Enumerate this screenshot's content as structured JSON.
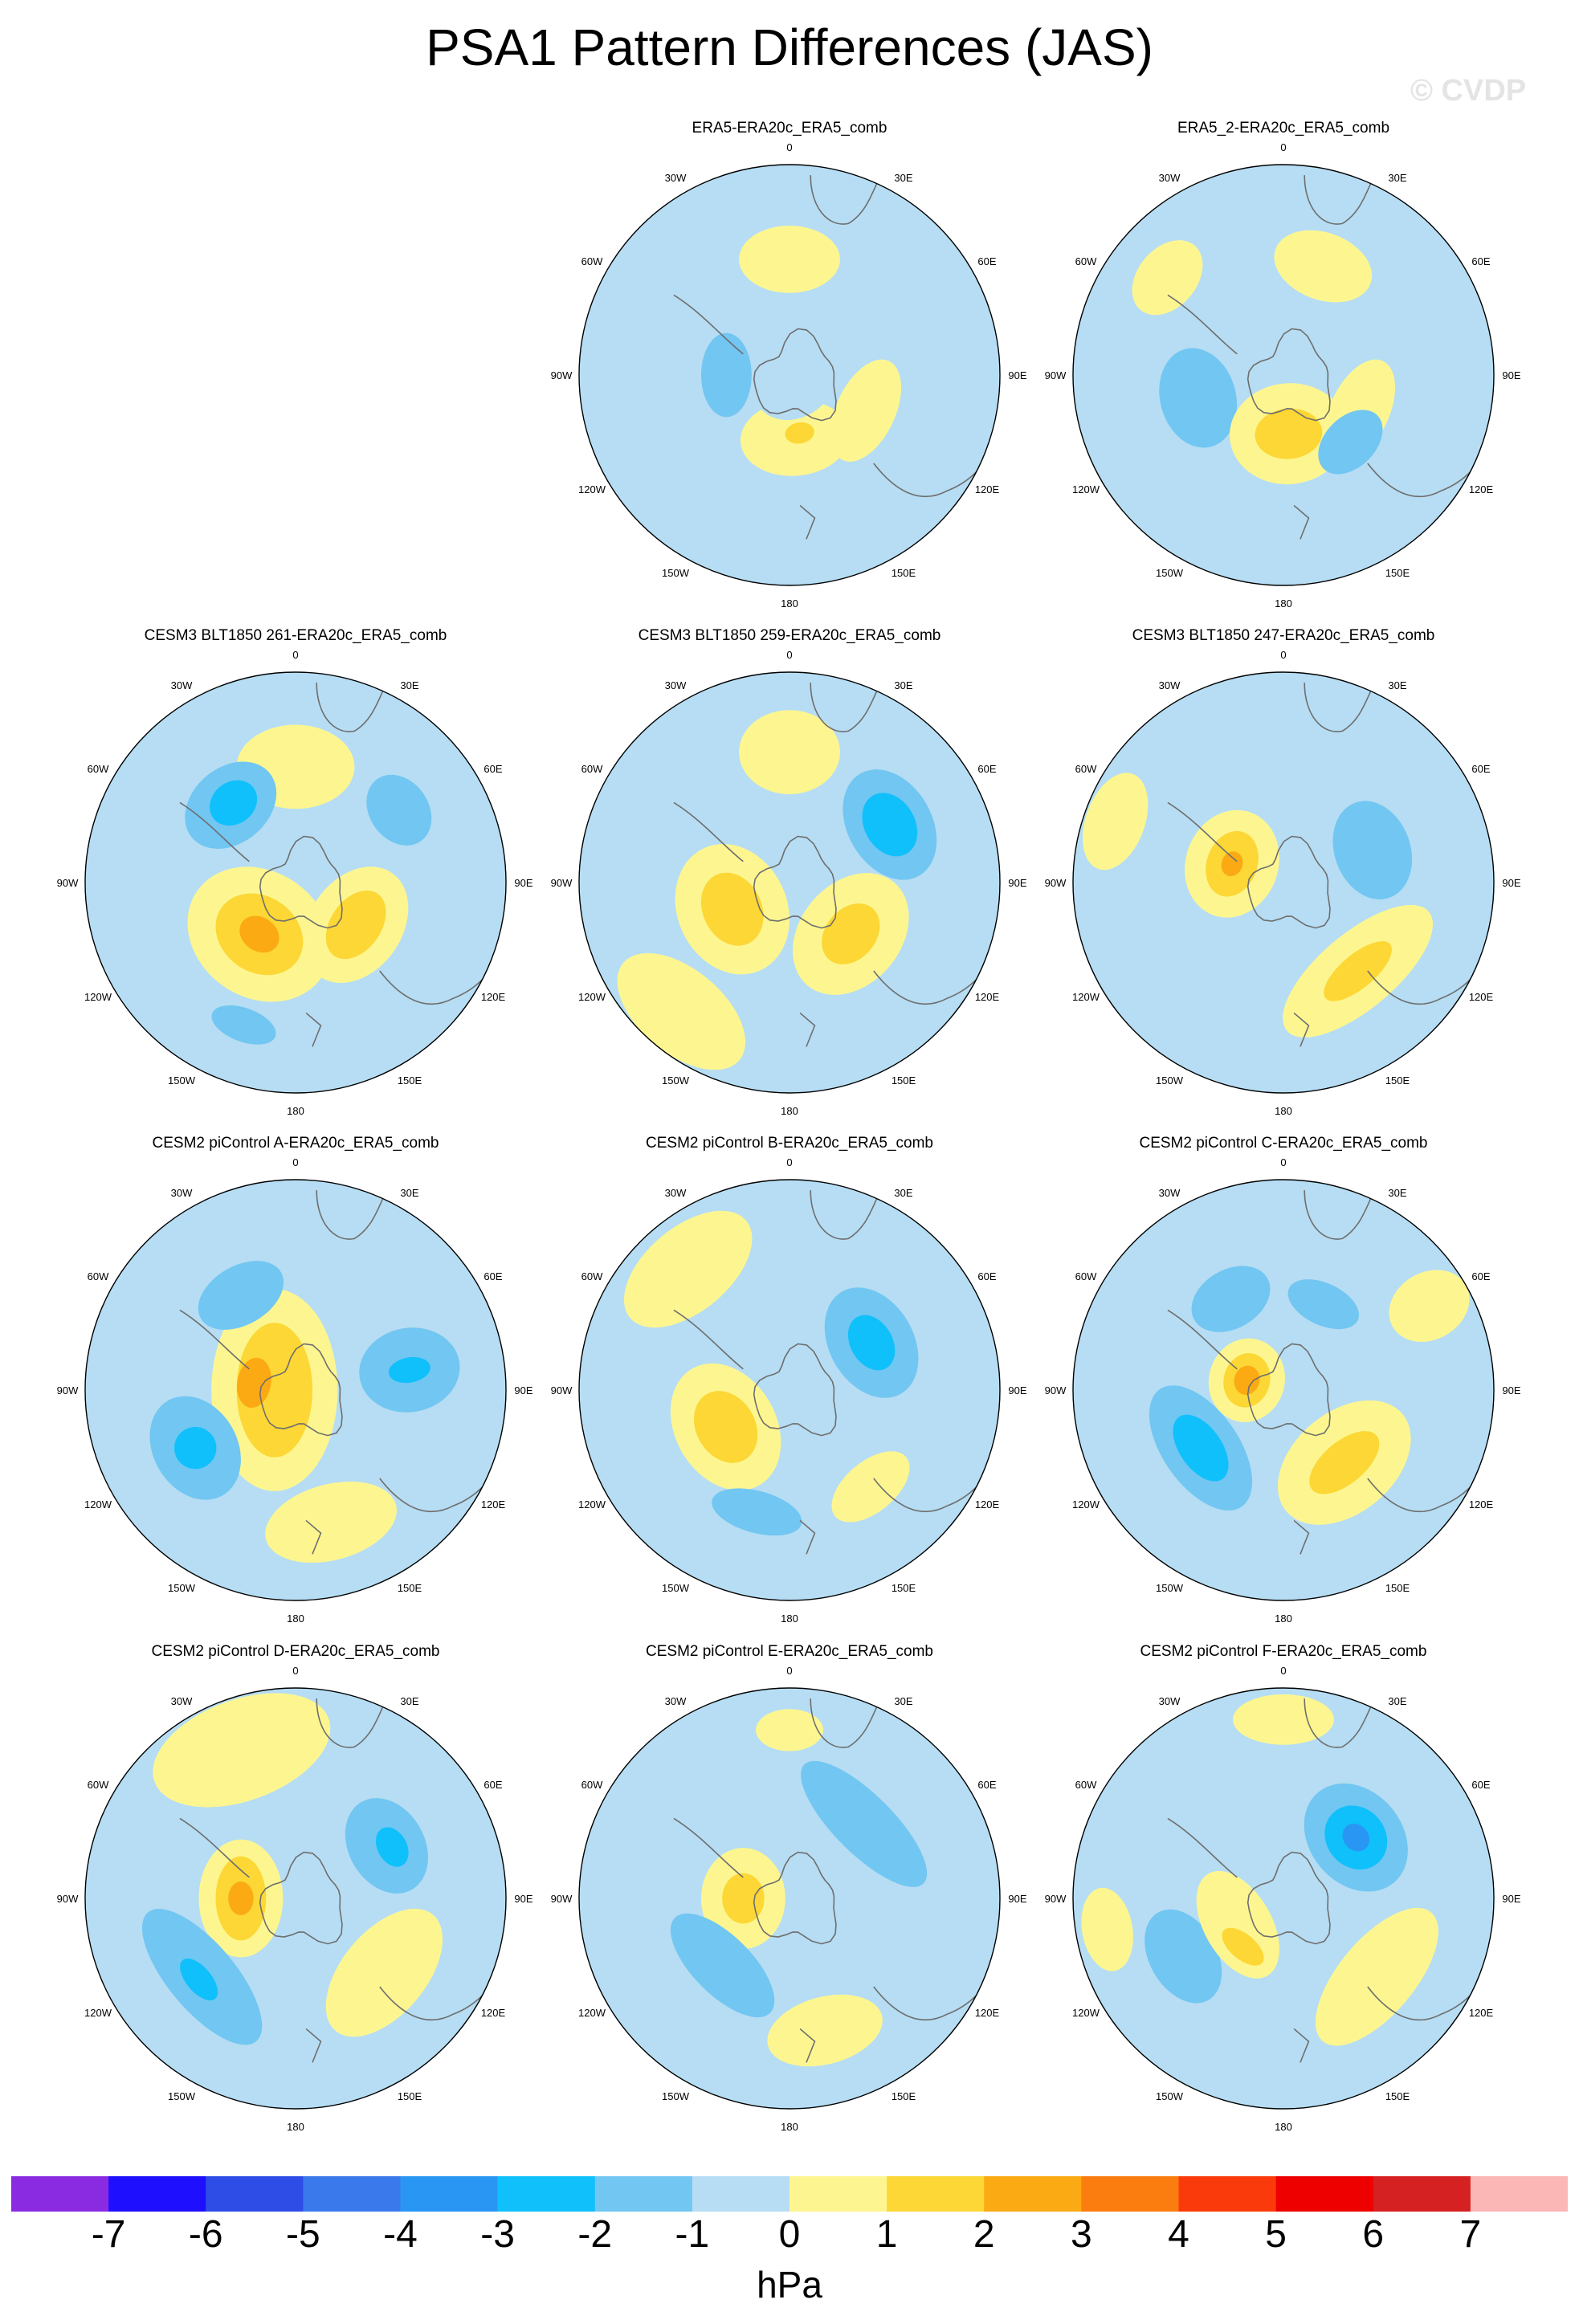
{
  "figure": {
    "title": "PSA1 Pattern Differences (JAS)",
    "watermark": "© CVDP"
  },
  "chart_data": {
    "type": "heatmap",
    "projection": "south-polar-stereographic",
    "variable_units": "hPa",
    "longitude_labels": [
      "0",
      "30E",
      "60E",
      "90E",
      "120E",
      "150E",
      "180",
      "150W",
      "120W",
      "90W",
      "60W",
      "30W"
    ],
    "colorbar": {
      "levels": [
        -7,
        -6,
        -5,
        -4,
        -3,
        -2,
        -1,
        0,
        1,
        2,
        3,
        4,
        5,
        6,
        7
      ],
      "colors": [
        "#8a2be2",
        "#1e10ff",
        "#2d4de6",
        "#3a79ec",
        "#2a96f4",
        "#10c0fb",
        "#72c6f2",
        "#b6ddf3",
        "#fdf690",
        "#fcd735",
        "#fbaa14",
        "#fb7d0f",
        "#fb3a0b",
        "#ee0000",
        "#d52121",
        "#fbb6b6"
      ],
      "units": "hPa"
    },
    "panels": [
      {
        "title": "ERA5-ERA20c_ERA5_comb",
        "blobs": [
          {
            "lon": 115,
            "r": 0.4,
            "v": 1,
            "a": 0.13,
            "b": 0.07
          },
          {
            "lon": 0,
            "r": 0.55,
            "v": 1,
            "a": 0.12,
            "b": 0.08
          },
          {
            "lon": 270,
            "r": 0.3,
            "v": -2,
            "a": 0.1,
            "b": 0.06
          },
          {
            "lon": 175,
            "r": 0.3,
            "v": 1,
            "a": 0.13,
            "b": 0.09
          },
          {
            "lon": 170,
            "r": 0.28,
            "v": 2,
            "a": 0.035,
            "b": 0.025
          },
          {
            "lon": 150,
            "r": 0.05,
            "v": -1,
            "a": 0.1,
            "b": 0.08
          }
        ]
      },
      {
        "title": "ERA5_2-ERA20c_ERA5_comb",
        "blobs": [
          {
            "lon": 115,
            "r": 0.4,
            "v": 1,
            "a": 0.13,
            "b": 0.07
          },
          {
            "lon": 20,
            "r": 0.55,
            "v": 1,
            "a": 0.12,
            "b": 0.08
          },
          {
            "lon": 310,
            "r": 0.72,
            "v": 1,
            "a": 0.1,
            "b": 0.07
          },
          {
            "lon": 255,
            "r": 0.42,
            "v": -2,
            "a": 0.12,
            "b": 0.09
          },
          {
            "lon": 175,
            "r": 0.28,
            "v": 1,
            "a": 0.14,
            "b": 0.12
          },
          {
            "lon": 175,
            "r": 0.28,
            "v": 2,
            "a": 0.08,
            "b": 0.06
          },
          {
            "lon": 135,
            "r": 0.45,
            "v": -2,
            "a": 0.09,
            "b": 0.06
          }
        ]
      },
      {
        "title": "CESM3 BLT1850 261-ERA20c_ERA5_comb",
        "blobs": [
          {
            "lon": 0,
            "r": 0.55,
            "v": 1,
            "a": 0.14,
            "b": 0.1
          },
          {
            "lon": 320,
            "r": 0.48,
            "v": -2,
            "a": 0.12,
            "b": 0.09
          },
          {
            "lon": 322,
            "r": 0.48,
            "v": -3,
            "a": 0.06,
            "b": 0.05
          },
          {
            "lon": 55,
            "r": 0.6,
            "v": -2,
            "a": 0.09,
            "b": 0.07
          },
          {
            "lon": 215,
            "r": 0.3,
            "v": 1,
            "a": 0.18,
            "b": 0.15
          },
          {
            "lon": 215,
            "r": 0.3,
            "v": 2,
            "a": 0.11,
            "b": 0.09
          },
          {
            "lon": 215,
            "r": 0.3,
            "v": 3,
            "a": 0.05,
            "b": 0.04
          },
          {
            "lon": 125,
            "r": 0.35,
            "v": 1,
            "a": 0.15,
            "b": 0.11
          },
          {
            "lon": 125,
            "r": 0.35,
            "v": 2,
            "a": 0.09,
            "b": 0.06
          },
          {
            "lon": 200,
            "r": 0.72,
            "v": -2,
            "a": 0.08,
            "b": 0.04
          }
        ]
      },
      {
        "title": "CESM3 BLT1850 259-ERA20c_ERA5_comb",
        "blobs": [
          {
            "lon": 0,
            "r": 0.62,
            "v": 1,
            "a": 0.12,
            "b": 0.1
          },
          {
            "lon": 60,
            "r": 0.55,
            "v": -2,
            "a": 0.14,
            "b": 0.1
          },
          {
            "lon": 60,
            "r": 0.55,
            "v": -3,
            "a": 0.08,
            "b": 0.06
          },
          {
            "lon": 245,
            "r": 0.3,
            "v": 1,
            "a": 0.16,
            "b": 0.13
          },
          {
            "lon": 245,
            "r": 0.3,
            "v": 2,
            "a": 0.09,
            "b": 0.07
          },
          {
            "lon": 130,
            "r": 0.38,
            "v": 1,
            "a": 0.16,
            "b": 0.12
          },
          {
            "lon": 130,
            "r": 0.38,
            "v": 2,
            "a": 0.08,
            "b": 0.06
          },
          {
            "lon": 220,
            "r": 0.8,
            "v": 1,
            "a": 0.18,
            "b": 0.1
          }
        ]
      },
      {
        "title": "CESM3 BLT1850 247-ERA20c_ERA5_comb",
        "blobs": [
          {
            "lon": 290,
            "r": 0.26,
            "v": 1,
            "a": 0.13,
            "b": 0.11
          },
          {
            "lon": 290,
            "r": 0.26,
            "v": 2,
            "a": 0.08,
            "b": 0.06
          },
          {
            "lon": 290,
            "r": 0.26,
            "v": 3,
            "a": 0.03,
            "b": 0.025
          },
          {
            "lon": 70,
            "r": 0.45,
            "v": -2,
            "a": 0.12,
            "b": 0.09
          },
          {
            "lon": 140,
            "r": 0.55,
            "v": 1,
            "a": 0.22,
            "b": 0.09
          },
          {
            "lon": 140,
            "r": 0.55,
            "v": 2,
            "a": 0.1,
            "b": 0.04
          },
          {
            "lon": 290,
            "r": 0.85,
            "v": 1,
            "a": 0.12,
            "b": 0.07
          }
        ]
      },
      {
        "title": "CESM2 piControl A-ERA20c_ERA5_comb",
        "blobs": [
          {
            "lon": 270,
            "r": 0.1,
            "v": 1,
            "a": 0.24,
            "b": 0.15
          },
          {
            "lon": 270,
            "r": 0.1,
            "v": 2,
            "a": 0.16,
            "b": 0.09
          },
          {
            "lon": 280,
            "r": 0.2,
            "v": 3,
            "a": 0.06,
            "b": 0.04
          },
          {
            "lon": 330,
            "r": 0.52,
            "v": -2,
            "a": 0.11,
            "b": 0.07
          },
          {
            "lon": 80,
            "r": 0.55,
            "v": -2,
            "a": 0.1,
            "b": 0.12
          },
          {
            "lon": 80,
            "r": 0.55,
            "v": -3,
            "a": 0.03,
            "b": 0.05
          },
          {
            "lon": 240,
            "r": 0.55,
            "v": -2,
            "a": 0.13,
            "b": 0.1
          },
          {
            "lon": 240,
            "r": 0.55,
            "v": -3,
            "a": 0.05,
            "b": 0.05
          },
          {
            "lon": 165,
            "r": 0.65,
            "v": 1,
            "a": 0.16,
            "b": 0.09
          }
        ]
      },
      {
        "title": "CESM2 piControl B-ERA20c_ERA5_comb",
        "blobs": [
          {
            "lon": 240,
            "r": 0.35,
            "v": 1,
            "a": 0.16,
            "b": 0.12
          },
          {
            "lon": 240,
            "r": 0.35,
            "v": 2,
            "a": 0.09,
            "b": 0.07
          },
          {
            "lon": 60,
            "r": 0.45,
            "v": -2,
            "a": 0.14,
            "b": 0.1
          },
          {
            "lon": 60,
            "r": 0.45,
            "v": -3,
            "a": 0.07,
            "b": 0.05
          },
          {
            "lon": 195,
            "r": 0.6,
            "v": -2,
            "a": 0.11,
            "b": 0.05
          },
          {
            "lon": 320,
            "r": 0.75,
            "v": 1,
            "a": 0.18,
            "b": 0.1
          },
          {
            "lon": 140,
            "r": 0.6,
            "v": 1,
            "a": 0.11,
            "b": 0.06
          }
        ]
      },
      {
        "title": "CESM2 piControl C-ERA20c_ERA5_comb",
        "blobs": [
          {
            "lon": 285,
            "r": 0.18,
            "v": 1,
            "a": 0.1,
            "b": 0.09
          },
          {
            "lon": 285,
            "r": 0.18,
            "v": 2,
            "a": 0.065,
            "b": 0.055
          },
          {
            "lon": 285,
            "r": 0.18,
            "v": 3,
            "a": 0.035,
            "b": 0.03
          },
          {
            "lon": 235,
            "r": 0.48,
            "v": -2,
            "a": 0.17,
            "b": 0.09
          },
          {
            "lon": 235,
            "r": 0.48,
            "v": -3,
            "a": 0.09,
            "b": 0.05
          },
          {
            "lon": 330,
            "r": 0.5,
            "v": -2,
            "a": 0.1,
            "b": 0.07
          },
          {
            "lon": 25,
            "r": 0.45,
            "v": -2,
            "a": 0.09,
            "b": 0.05
          },
          {
            "lon": 140,
            "r": 0.45,
            "v": 1,
            "a": 0.18,
            "b": 0.12
          },
          {
            "lon": 140,
            "r": 0.45,
            "v": 2,
            "a": 0.1,
            "b": 0.05
          },
          {
            "lon": 60,
            "r": 0.8,
            "v": 1,
            "a": 0.08,
            "b": 0.1
          }
        ]
      },
      {
        "title": "CESM2 piControl D-ERA20c_ERA5_comb",
        "blobs": [
          {
            "lon": 270,
            "r": 0.26,
            "v": 1,
            "a": 0.14,
            "b": 0.1
          },
          {
            "lon": 270,
            "r": 0.26,
            "v": 2,
            "a": 0.1,
            "b": 0.06
          },
          {
            "lon": 270,
            "r": 0.26,
            "v": 3,
            "a": 0.04,
            "b": 0.03
          },
          {
            "lon": 60,
            "r": 0.5,
            "v": -2,
            "a": 0.12,
            "b": 0.09
          },
          {
            "lon": 62,
            "r": 0.52,
            "v": -3,
            "a": 0.05,
            "b": 0.035
          },
          {
            "lon": 230,
            "r": 0.58,
            "v": -2,
            "a": 0.2,
            "b": 0.08
          },
          {
            "lon": 230,
            "r": 0.6,
            "v": -3,
            "a": 0.06,
            "b": 0.03
          },
          {
            "lon": 130,
            "r": 0.55,
            "v": 1,
            "a": 0.18,
            "b": 0.1
          },
          {
            "lon": 340,
            "r": 0.75,
            "v": 1,
            "a": 0.22,
            "b": 0.12
          }
        ]
      },
      {
        "title": "CESM2 piControl E-ERA20c_ERA5_comb",
        "blobs": [
          {
            "lon": 270,
            "r": 0.22,
            "v": 1,
            "a": 0.12,
            "b": 0.1
          },
          {
            "lon": 270,
            "r": 0.22,
            "v": 2,
            "a": 0.06,
            "b": 0.05
          },
          {
            "lon": 45,
            "r": 0.5,
            "v": -2,
            "a": 0.2,
            "b": 0.07
          },
          {
            "lon": 225,
            "r": 0.45,
            "v": -2,
            "a": 0.16,
            "b": 0.07
          },
          {
            "lon": 165,
            "r": 0.65,
            "v": 1,
            "a": 0.14,
            "b": 0.08
          },
          {
            "lon": 0,
            "r": 0.8,
            "v": 1,
            "a": 0.08,
            "b": 0.05
          }
        ]
      },
      {
        "title": "CESM2 piControl F-ERA20c_ERA5_comb",
        "blobs": [
          {
            "lon": 50,
            "r": 0.45,
            "v": -2,
            "a": 0.14,
            "b": 0.11
          },
          {
            "lon": 50,
            "r": 0.45,
            "v": -3,
            "a": 0.08,
            "b": 0.07
          },
          {
            "lon": 50,
            "r": 0.45,
            "v": -4,
            "a": 0.035,
            "b": 0.03
          },
          {
            "lon": 240,
            "r": 0.55,
            "v": -2,
            "a": 0.12,
            "b": 0.08
          },
          {
            "lon": 240,
            "r": 0.25,
            "v": 1,
            "a": 0.14,
            "b": 0.08
          },
          {
            "lon": 220,
            "r": 0.3,
            "v": 2,
            "a": 0.06,
            "b": 0.03
          },
          {
            "lon": 130,
            "r": 0.58,
            "v": 1,
            "a": 0.2,
            "b": 0.09
          },
          {
            "lon": 0,
            "r": 0.85,
            "v": 1,
            "a": 0.12,
            "b": 0.06
          },
          {
            "lon": 260,
            "r": 0.85,
            "v": 1,
            "a": 0.1,
            "b": 0.06
          }
        ]
      }
    ]
  }
}
